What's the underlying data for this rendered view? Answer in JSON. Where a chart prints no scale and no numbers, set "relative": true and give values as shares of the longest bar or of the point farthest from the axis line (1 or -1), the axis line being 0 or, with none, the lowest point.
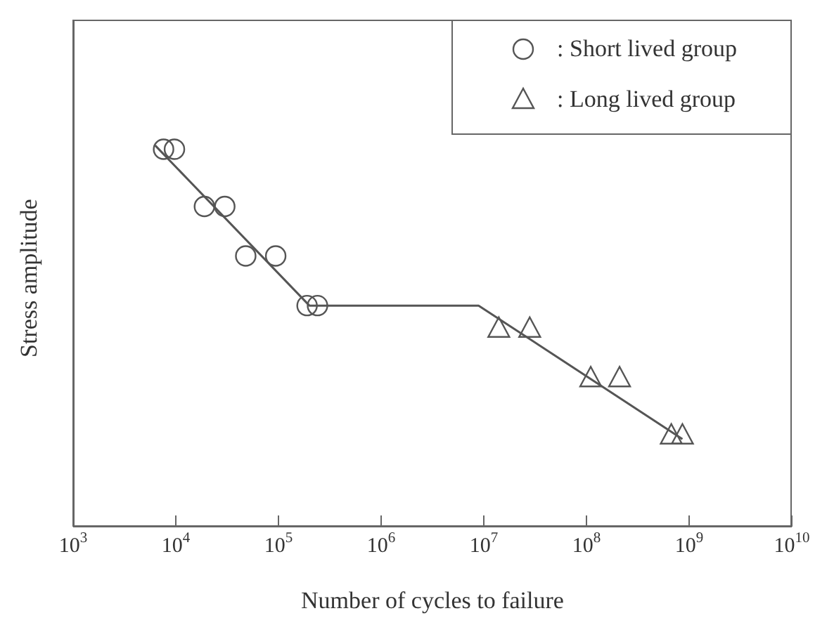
{
  "chart_data": {
    "type": "scatter",
    "xlabel": "Number of cycles to failure",
    "ylabel": "Stress amplitude",
    "relative": true,
    "log": "x",
    "xlim": [
      1000,
      10000000000
    ],
    "xticks": [
      {
        "value": 1000,
        "label": "10$^{3}$"
      },
      {
        "value": 10000,
        "label": "10$^{4}$"
      },
      {
        "value": 100000,
        "label": "10$^{5}$"
      },
      {
        "value": 1000000,
        "label": "10$^{6}$"
      },
      {
        "value": 10000000,
        "label": "10$^{7}$"
      },
      {
        "value": 100000000,
        "label": "10$^{8}$"
      },
      {
        "value": 1000000000,
        "label": "10$^{9}$"
      },
      {
        "value": 10000000000,
        "label": "10$^{10}$"
      }
    ],
    "legend": "top right",
    "grid": false,
    "series": [
      {
        "name": ": Short lived group",
        "marker": "circle",
        "color": "#555555",
        "x": [
          7600,
          9700,
          19000,
          30000,
          48000,
          94000,
          190000,
          240000
        ],
        "values": [
          0.99,
          0.99,
          0.84,
          0.84,
          0.71,
          0.71,
          0.58,
          0.58
        ]
      },
      {
        "name": ": Long lived group",
        "marker": "triangle",
        "color": "#555555",
        "x": [
          14000000,
          28000000,
          110000000,
          210000000,
          670000000,
          860000000
        ],
        "values": [
          0.52,
          0.52,
          0.39,
          0.39,
          0.24,
          0.24
        ]
      },
      {
        "type": "line",
        "marker": "none",
        "color": "#555555",
        "x": [
          6300,
          200000,
          8900000,
          860000000
        ],
        "values": [
          1,
          0.58,
          0.58,
          0.23
        ]
      }
    ]
  }
}
